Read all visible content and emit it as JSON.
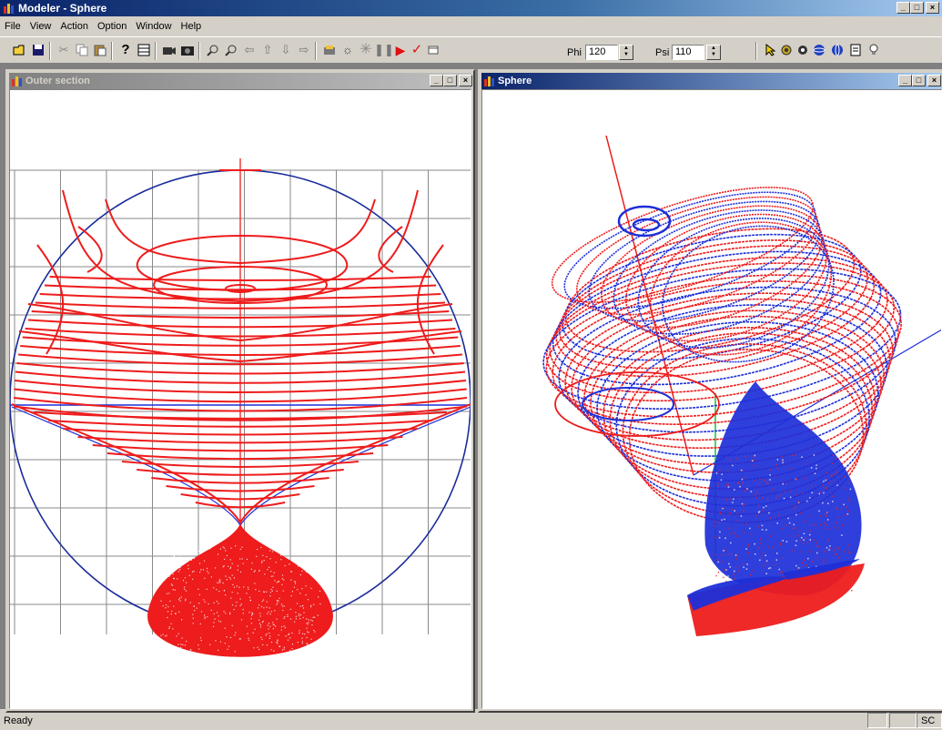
{
  "window": {
    "title": "Modeler - Sphere"
  },
  "menu": [
    "File",
    "View",
    "Action",
    "Option",
    "Window",
    "Help"
  ],
  "toolbar": {
    "phi_label": "Phi",
    "phi_value": "120",
    "psi_label": "Psi",
    "psi_value": "110"
  },
  "windows": {
    "outer": {
      "title": "Outer section"
    },
    "sphere": {
      "title": "Sphere"
    }
  },
  "caption": {
    "min": "_",
    "max": "□",
    "close": "×"
  },
  "status": {
    "text": "Ready",
    "pane_right": "SC"
  },
  "colors": {
    "curve_red": "#ee1c1c",
    "curve_blue": "#1d2fd8",
    "circle": "#1a2a9a",
    "grid": "#8a8a8a",
    "axis_green": "#19c23c"
  }
}
